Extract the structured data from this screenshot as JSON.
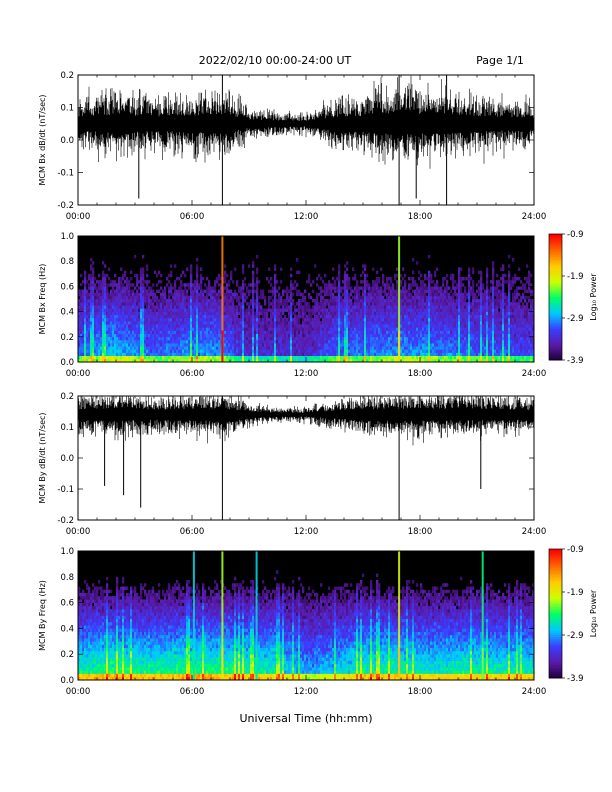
{
  "header": {
    "title": "2022/02/10  00:00-24:00 UT",
    "page": "Page 1/1"
  },
  "x_axis_title": "Universal Time (hh:mm)",
  "colorbar_label": "Log₁₀ Power",
  "colors": {
    "waveform": "#000000",
    "spectrogram_background": "#000000",
    "colormap": [
      "#1a0033",
      "#5a1aa6",
      "#3c3cff",
      "#00c8ff",
      "#00ff66",
      "#ccff00",
      "#ffcc00",
      "#ff6600",
      "#ff0000"
    ]
  },
  "chart_data": [
    {
      "type": "line",
      "id": "bx_waveform",
      "ylabel": "MCM Bx dB/dt (nT/sec)",
      "xlim": [
        0,
        24
      ],
      "ylim": [
        -0.2,
        0.2
      ],
      "xticks": [
        "00:00",
        "06:00",
        "12:00",
        "18:00",
        "24:00"
      ],
      "yticks": [
        -0.2,
        -0.1,
        0.0,
        0.1,
        0.2
      ],
      "ytick_labels": [
        "-0.2",
        "-0.1",
        "0.0",
        "0.1",
        "0.2"
      ],
      "baseline": 0.05,
      "envelope_hours": [
        0,
        2,
        4,
        6,
        7.5,
        9,
        10.5,
        12,
        13.5,
        15,
        16.5,
        18,
        19.5,
        21,
        22.5,
        24
      ],
      "envelope_amplitude": [
        0.1,
        0.14,
        0.11,
        0.12,
        0.15,
        0.06,
        0.05,
        0.04,
        0.1,
        0.12,
        0.16,
        0.15,
        0.14,
        0.12,
        0.1,
        0.09
      ],
      "spikes": [
        {
          "hour": 7.6,
          "min": -0.2,
          "max": 0.2
        },
        {
          "hour": 3.2,
          "min": -0.18,
          "max": 0.1
        },
        {
          "hour": 16.9,
          "min": -0.2,
          "max": 0.2
        },
        {
          "hour": 19.4,
          "min": -0.2,
          "max": 0.2
        },
        {
          "hour": 17.8,
          "min": -0.18,
          "max": 0.15
        }
      ]
    },
    {
      "type": "heatmap",
      "id": "bx_spectrogram",
      "ylabel": "MCM Bx Freq (Hz)",
      "xlim": [
        0,
        24
      ],
      "ylim": [
        0.0,
        1.0
      ],
      "xticks": [
        "00:00",
        "06:00",
        "12:00",
        "18:00",
        "24:00"
      ],
      "yticks": [
        0.0,
        0.2,
        0.4,
        0.6,
        0.8,
        1.0
      ],
      "ytick_labels": [
        "0.0",
        "0.2",
        "0.4",
        "0.6",
        "0.8",
        "1.0"
      ],
      "colorbar": {
        "min": -3.9,
        "max": -0.9,
        "ticks": [
          "-0.9",
          "-1.9",
          "-2.9",
          "-3.9"
        ]
      },
      "activity_hours": [
        0,
        2,
        4,
        6,
        7.5,
        9,
        10.5,
        12,
        13.5,
        15,
        16.5,
        18,
        19.5,
        21,
        22.5,
        24
      ],
      "activity_level": [
        0.5,
        0.7,
        0.5,
        0.6,
        0.6,
        0.3,
        0.35,
        0.3,
        0.5,
        0.55,
        0.6,
        0.6,
        0.55,
        0.5,
        0.45,
        0.45
      ],
      "bright_lines": [
        {
          "hour": 7.6,
          "power": -0.9
        },
        {
          "hour": 16.9,
          "power": -1.8
        }
      ]
    },
    {
      "type": "line",
      "id": "by_waveform",
      "ylabel": "MCM By dB/dt (nT/sec)",
      "xlim": [
        0,
        24
      ],
      "ylim": [
        -0.2,
        0.2
      ],
      "xticks": [
        "00:00",
        "06:00",
        "12:00",
        "18:00",
        "24:00"
      ],
      "yticks": [
        -0.2,
        -0.1,
        0.0,
        0.1,
        0.2
      ],
      "ytick_labels": [
        "-0.2",
        "-0.1",
        "0.0",
        "0.1",
        "0.2"
      ],
      "baseline": 0.14,
      "envelope_hours": [
        0,
        2,
        4,
        6,
        7.5,
        9,
        10.5,
        12,
        13.5,
        15,
        16.5,
        18,
        19.5,
        21,
        22.5,
        24
      ],
      "envelope_amplitude": [
        0.08,
        0.1,
        0.08,
        0.09,
        0.1,
        0.05,
        0.03,
        0.03,
        0.06,
        0.08,
        0.09,
        0.1,
        0.09,
        0.09,
        0.08,
        0.07
      ],
      "spikes": [
        {
          "hour": 7.6,
          "min": -0.2,
          "max": 0.2
        },
        {
          "hour": 16.9,
          "min": -0.2,
          "max": 0.2
        },
        {
          "hour": 1.4,
          "min": -0.09,
          "max": 0.18
        },
        {
          "hour": 2.4,
          "min": -0.12,
          "max": 0.18
        },
        {
          "hour": 3.3,
          "min": -0.16,
          "max": 0.18
        },
        {
          "hour": 21.2,
          "min": -0.1,
          "max": 0.2
        }
      ]
    },
    {
      "type": "heatmap",
      "id": "by_spectrogram",
      "ylabel": "MCM By Freq (Hz)",
      "xlim": [
        0,
        24
      ],
      "ylim": [
        0.0,
        1.0
      ],
      "xticks": [
        "00:00",
        "06:00",
        "12:00",
        "18:00",
        "24:00"
      ],
      "yticks": [
        0.0,
        0.2,
        0.4,
        0.6,
        0.8,
        1.0
      ],
      "ytick_labels": [
        "0.0",
        "0.2",
        "0.4",
        "0.6",
        "0.8",
        "1.0"
      ],
      "colorbar": {
        "min": -3.9,
        "max": -0.9,
        "ticks": [
          "-0.9",
          "-1.9",
          "-2.9",
          "-3.9"
        ]
      },
      "activity_hours": [
        0,
        2,
        4,
        6,
        7.5,
        9,
        10.5,
        12,
        13.5,
        15,
        16.5,
        18,
        19.5,
        21,
        22.5,
        24
      ],
      "activity_level": [
        0.85,
        0.9,
        0.85,
        0.9,
        0.9,
        0.85,
        0.8,
        0.6,
        0.7,
        0.85,
        0.85,
        0.8,
        0.8,
        0.85,
        0.8,
        0.8
      ],
      "bright_lines": [
        {
          "hour": 7.6,
          "power": -1.8
        },
        {
          "hour": 16.9,
          "power": -1.6
        },
        {
          "hour": 21.3,
          "power": -2.2
        },
        {
          "hour": 6.1,
          "power": -2.5
        },
        {
          "hour": 9.4,
          "power": -2.5
        }
      ]
    }
  ]
}
